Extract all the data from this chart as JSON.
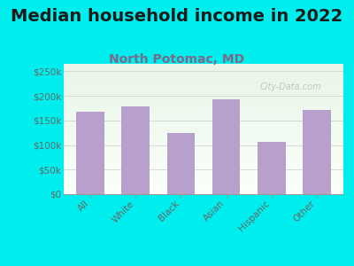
{
  "title": "Median household income in 2022",
  "subtitle": "North Potomac, MD",
  "categories": [
    "All",
    "White",
    "Black",
    "Asian",
    "Hispanic",
    "Other"
  ],
  "values": [
    168000,
    178000,
    125000,
    193000,
    107000,
    172000
  ],
  "bar_color": "#b8a0cc",
  "background_color": "#00eeee",
  "title_fontsize": 14,
  "subtitle_fontsize": 10,
  "subtitle_color": "#7a6a8a",
  "title_color": "#1a1a1a",
  "tick_label_color": "#666666",
  "ytick_labels": [
    "$0",
    "$50k",
    "$100k",
    "$150k",
    "$200k",
    "$250k"
  ],
  "ytick_values": [
    0,
    50000,
    100000,
    150000,
    200000,
    250000
  ],
  "ylim": [
    0,
    265000
  ],
  "watermark": "City-Data.com"
}
